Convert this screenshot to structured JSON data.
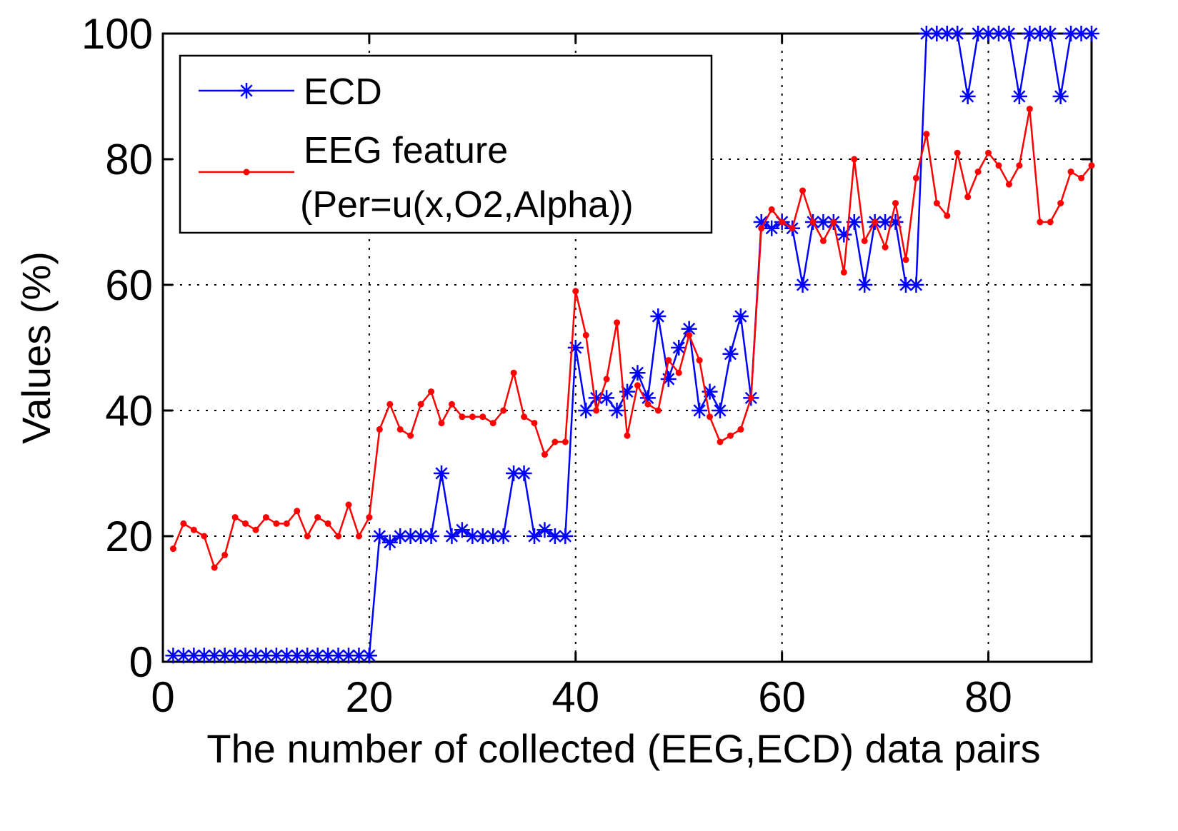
{
  "chart_data": {
    "type": "line",
    "title": "",
    "xlabel": "The number of collected (EEG,ECD) data pairs",
    "ylabel": "Values (%)",
    "xlim": [
      0,
      90
    ],
    "ylim": [
      0,
      100
    ],
    "xticks": [
      0,
      20,
      40,
      60,
      80
    ],
    "yticks": [
      0,
      20,
      40,
      60,
      80,
      100
    ],
    "grid": true,
    "legend_position": "top-left",
    "series": [
      {
        "name": "ECD",
        "color": "#0000ff",
        "marker": "star",
        "x": [
          1,
          2,
          3,
          4,
          5,
          6,
          7,
          8,
          9,
          10,
          11,
          12,
          13,
          14,
          15,
          16,
          17,
          18,
          19,
          20,
          21,
          22,
          23,
          24,
          25,
          26,
          27,
          28,
          29,
          30,
          31,
          32,
          33,
          34,
          35,
          36,
          37,
          38,
          39,
          40,
          41,
          42,
          43,
          44,
          45,
          46,
          47,
          48,
          49,
          50,
          51,
          52,
          53,
          54,
          55,
          56,
          57,
          58,
          59,
          60,
          61,
          62,
          63,
          64,
          65,
          66,
          67,
          68,
          69,
          70,
          71,
          72,
          73,
          74,
          75,
          76,
          77,
          78,
          79,
          80,
          81,
          82,
          83,
          84,
          85,
          86,
          87,
          88,
          89,
          90
        ],
        "y": [
          1,
          1,
          1,
          1,
          1,
          1,
          1,
          1,
          1,
          1,
          1,
          1,
          1,
          1,
          1,
          1,
          1,
          1,
          1,
          1,
          20,
          19,
          20,
          20,
          20,
          20,
          30,
          20,
          21,
          20,
          20,
          20,
          20,
          30,
          30,
          20,
          21,
          20,
          20,
          50,
          40,
          42,
          42,
          40,
          43,
          46,
          42,
          55,
          45,
          50,
          53,
          40,
          43,
          40,
          49,
          55,
          42,
          70,
          69,
          70,
          69,
          60,
          70,
          70,
          70,
          68,
          70,
          60,
          70,
          70,
          70,
          60,
          60,
          100,
          100,
          100,
          100,
          90,
          100,
          100,
          100,
          100,
          90,
          100,
          100,
          100,
          90,
          100,
          100,
          100
        ]
      },
      {
        "name": "EEG feature",
        "name_line2": "(Per=u(x,O2,Alpha))",
        "color": "#ff0000",
        "marker": "dot",
        "x": [
          1,
          2,
          3,
          4,
          5,
          6,
          7,
          8,
          9,
          10,
          11,
          12,
          13,
          14,
          15,
          16,
          17,
          18,
          19,
          20,
          21,
          22,
          23,
          24,
          25,
          26,
          27,
          28,
          29,
          30,
          31,
          32,
          33,
          34,
          35,
          36,
          37,
          38,
          39,
          40,
          41,
          42,
          43,
          44,
          45,
          46,
          47,
          48,
          49,
          50,
          51,
          52,
          53,
          54,
          55,
          56,
          57,
          58,
          59,
          60,
          61,
          62,
          63,
          64,
          65,
          66,
          67,
          68,
          69,
          70,
          71,
          72,
          73,
          74,
          75,
          76,
          77,
          78,
          79,
          80,
          81,
          82,
          83,
          84,
          85,
          86,
          87,
          88,
          89,
          90
        ],
        "y": [
          18,
          22,
          21,
          20,
          15,
          17,
          23,
          22,
          21,
          23,
          22,
          22,
          24,
          20,
          23,
          22,
          20,
          25,
          20,
          23,
          37,
          41,
          37,
          36,
          41,
          43,
          38,
          41,
          39,
          39,
          39,
          38,
          40,
          46,
          39,
          38,
          33,
          35,
          35,
          59,
          52,
          40,
          45,
          54,
          36,
          44,
          41,
          40,
          48,
          46,
          52,
          48,
          39,
          35,
          36,
          37,
          42,
          69,
          72,
          70,
          69,
          75,
          70,
          67,
          70,
          62,
          80,
          67,
          70,
          66,
          73,
          64,
          77,
          84,
          73,
          71,
          81,
          74,
          78,
          81,
          79,
          76,
          79,
          88,
          70,
          70,
          73,
          78,
          77,
          79
        ]
      }
    ]
  }
}
